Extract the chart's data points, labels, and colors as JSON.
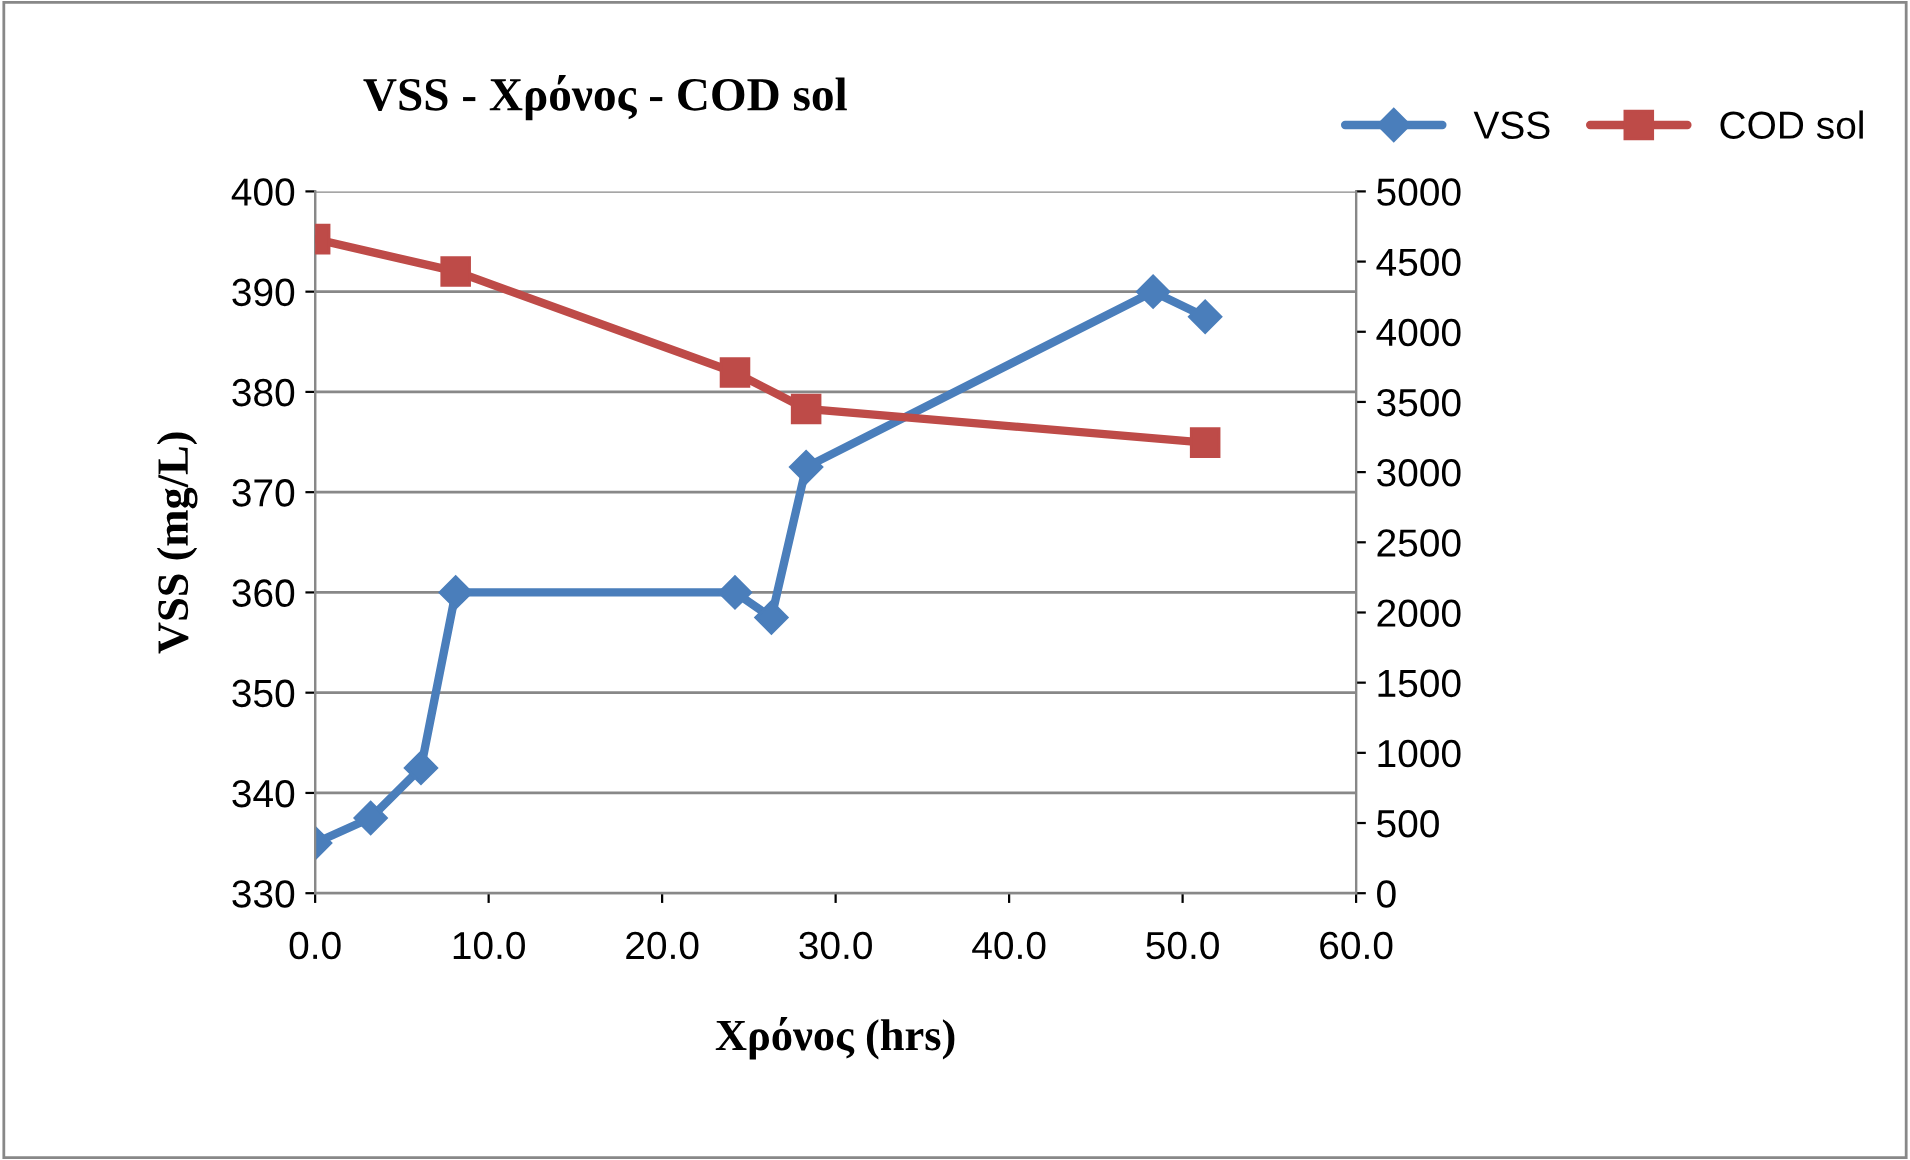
{
  "chart_data": {
    "type": "line",
    "title": "VSS - Χρόνος - COD sol",
    "xlabel": "Χρόνος (hrs)",
    "ylabel": "VSS (mg/L)",
    "xlim": [
      0,
      60
    ],
    "xticks": [
      {
        "value": 0,
        "label": "0.0"
      },
      {
        "value": 10,
        "label": "10.0"
      },
      {
        "value": 20,
        "label": "20.0"
      },
      {
        "value": 30,
        "label": "30.0"
      },
      {
        "value": 40,
        "label": "40.0"
      },
      {
        "value": 50,
        "label": "50.0"
      },
      {
        "value": 60,
        "label": "60.0"
      }
    ],
    "ylim": [
      330,
      400
    ],
    "yticks": [
      330,
      340,
      350,
      360,
      370,
      380,
      390,
      400
    ],
    "y2lim": [
      0,
      5000
    ],
    "y2ticks": [
      0,
      500,
      1000,
      1500,
      2000,
      2500,
      3000,
      3500,
      4000,
      4500,
      5000
    ],
    "grid": "y",
    "legend": "top right",
    "series": [
      {
        "name": "VSS",
        "color": "#4a7ebb",
        "marker": "diamond",
        "x": [
          0,
          3.2,
          6.1,
          8.1,
          24.2,
          26.3,
          28.3,
          48.3,
          51.3
        ],
        "values": [
          335,
          337.5,
          342.5,
          360,
          360,
          357.5,
          372.5,
          390,
          387.5
        ]
      },
      {
        "name": "COD sol",
        "color": "#be4b48",
        "marker": "square",
        "axis": "y2",
        "x": [
          0,
          8.1,
          24.2,
          28.3,
          51.3
        ],
        "values": [
          4660,
          4430,
          3710,
          3450,
          3210
        ]
      }
    ]
  }
}
